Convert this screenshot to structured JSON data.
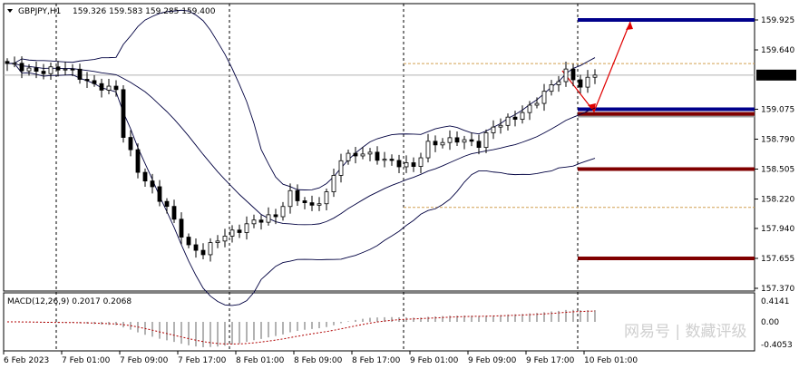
{
  "header": {
    "symbol": "GBPJPY,H1",
    "ohlc": "159.326 159.583 159.285 159.400"
  },
  "price_axis": {
    "labels": [
      "159.925",
      "159.640",
      "159.400",
      "159.075",
      "158.790",
      "158.505",
      "158.220",
      "157.940",
      "157.655",
      "157.370"
    ],
    "current_price": "159.400",
    "min": 157.37,
    "max": 159.925
  },
  "macd": {
    "label": "MACD(12,26,9) 0.2017 0.2068",
    "axis_labels": [
      "0.4141",
      "0.00",
      "-0.4053"
    ]
  },
  "time_axis": [
    "6 Feb 2023",
    "7 Feb 01:00",
    "7 Feb 09:00",
    "7 Feb 17:00",
    "8 Feb 01:00",
    "8 Feb 09:00",
    "8 Feb 17:00",
    "9 Feb 01:00",
    "9 Feb 09:00",
    "9 Feb 17:00",
    "10 Feb 01:00"
  ],
  "levels": {
    "blue": [
      159.925,
      159.075
    ],
    "dark_red": [
      159.03,
      158.505,
      157.655
    ],
    "orange_dashed": [
      159.51,
      158.14
    ]
  },
  "colors": {
    "blue": "#00008b",
    "dark_red": "#800000",
    "arrow": "#e00000",
    "orange": "#d2a050"
  },
  "chart_data": {
    "type": "candlestick",
    "closes_by_hour": [
      [
        0,
        159.51
      ],
      [
        4,
        159.43
      ],
      [
        8,
        159.47
      ],
      [
        12,
        159.3
      ],
      [
        15,
        159.26
      ],
      [
        16,
        158.83
      ],
      [
        18,
        158.49
      ],
      [
        20,
        158.31
      ],
      [
        22,
        158.14
      ],
      [
        25,
        157.76
      ],
      [
        27,
        157.71
      ],
      [
        29,
        157.84
      ],
      [
        32,
        157.93
      ],
      [
        34,
        158.01
      ],
      [
        37,
        158.06
      ],
      [
        39,
        158.27
      ],
      [
        42,
        158.14
      ],
      [
        44,
        158.27
      ],
      [
        46,
        158.61
      ],
      [
        49,
        158.66
      ],
      [
        53,
        158.57
      ],
      [
        56,
        158.53
      ],
      [
        58,
        158.74
      ],
      [
        62,
        158.79
      ],
      [
        65,
        158.74
      ],
      [
        67,
        158.91
      ],
      [
        70,
        159.0
      ],
      [
        72,
        159.09
      ],
      [
        75,
        159.3
      ],
      [
        77,
        159.43
      ],
      [
        79,
        159.3
      ],
      [
        81,
        159.4
      ]
    ]
  },
  "watermark": "网易号 | 数藏评级"
}
